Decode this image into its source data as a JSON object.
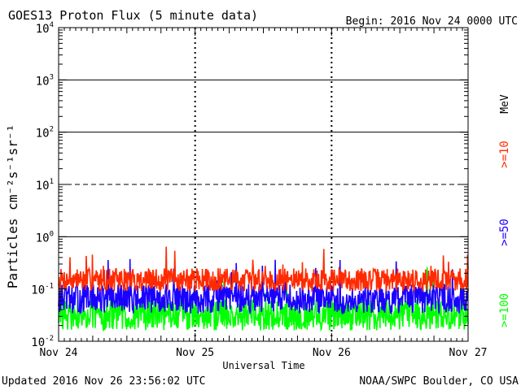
{
  "header": {
    "title": "GOES13 Proton Flux (5 minute data)",
    "begin": "Begin: 2016 Nov 24 0000 UTC"
  },
  "footer": {
    "updated": "Updated 2016 Nov 26 23:56:02 UTC",
    "credit": "NOAA/SWPC Boulder, CO USA"
  },
  "chart_data": {
    "type": "line",
    "title": "GOES13 Proton Flux (5 minute data)",
    "xlabel": "Universal Time",
    "ylabel": "Particles cm⁻²s⁻¹sr⁻¹",
    "y_scale": "log",
    "ylim": [
      0.01,
      10000
    ],
    "yticks": [
      {
        "value": 0.01,
        "base": "10",
        "exp": "-2"
      },
      {
        "value": 0.1,
        "base": "10",
        "exp": "-1"
      },
      {
        "value": 1,
        "base": "10",
        "exp": "0"
      },
      {
        "value": 10,
        "base": "10",
        "exp": "1"
      },
      {
        "value": 100,
        "base": "10",
        "exp": "2"
      },
      {
        "value": 1000,
        "base": "10",
        "exp": "3"
      },
      {
        "value": 10000,
        "base": "10",
        "exp": "4"
      }
    ],
    "x_ticks": [
      "Nov 24",
      "Nov 25",
      "Nov 26",
      "Nov 27"
    ],
    "threshold_lines": [
      {
        "value": 1,
        "style": "solid"
      },
      {
        "value": 10,
        "style": "dashed"
      },
      {
        "value": 100,
        "style": "solid"
      },
      {
        "value": 1000,
        "style": "solid"
      }
    ],
    "right_axis_unit": "MeV",
    "series": [
      {
        "name": ">=10",
        "color": "#ff2a00",
        "base_flux": 0.15,
        "noise": 0.22,
        "seed": 7,
        "x_range": [
          0,
          3
        ]
      },
      {
        "name": ">=50",
        "color": "#1a00ff",
        "base_flux": 0.065,
        "noise": 0.28,
        "seed": 13,
        "x_range": [
          0,
          3
        ]
      },
      {
        "name": ">=100",
        "color": "#00ff00",
        "base_flux": 0.032,
        "noise": 0.3,
        "seed": 29,
        "x_range": [
          0,
          3
        ]
      }
    ]
  }
}
